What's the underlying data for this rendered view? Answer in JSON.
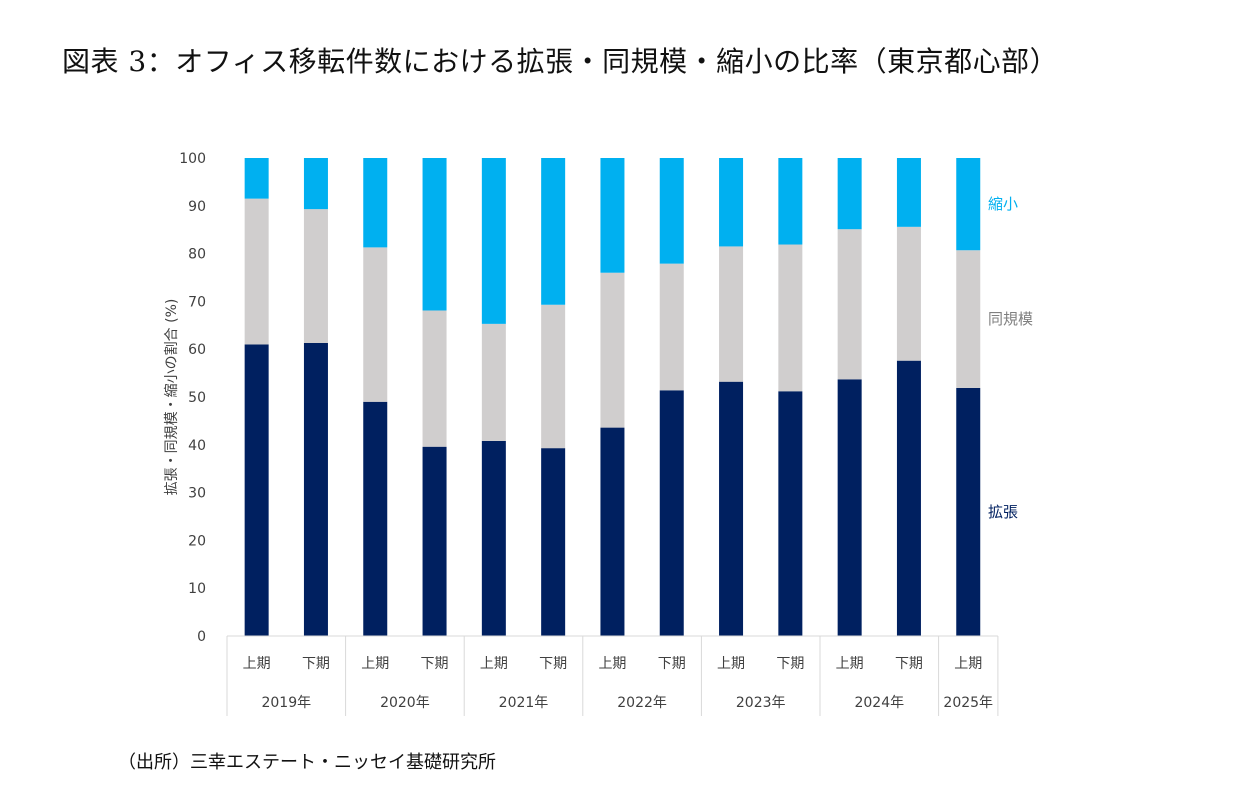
{
  "title": "図表 3：オフィス移転件数における拡張・同規模・縮小の比率（東京都心部）",
  "source": "（出所）三幸エステート・ニッセイ基礎研究所",
  "chart_data": {
    "type": "bar",
    "stacked": true,
    "title": "",
    "ylabel": "拡張・同規模・縮小の割合 (%)",
    "xlabel": "",
    "ylim": [
      0,
      100
    ],
    "yticks": [
      0,
      10,
      20,
      30,
      40,
      50,
      60,
      70,
      80,
      90,
      100
    ],
    "grid": false,
    "legend_position": "right",
    "categories": [
      "上期",
      "下期",
      "上期",
      "下期",
      "上期",
      "下期",
      "上期",
      "下期",
      "上期",
      "下期",
      "上期",
      "下期",
      "上期"
    ],
    "groups": [
      {
        "label": "2019年",
        "span": 2
      },
      {
        "label": "2020年",
        "span": 2
      },
      {
        "label": "2021年",
        "span": 2
      },
      {
        "label": "2022年",
        "span": 2
      },
      {
        "label": "2023年",
        "span": 2
      },
      {
        "label": "2024年",
        "span": 2
      },
      {
        "label": "2025年",
        "span": 1
      }
    ],
    "series": [
      {
        "name": "拡張",
        "color": "#002060",
        "values": [
          61,
          61.3,
          49,
          39.6,
          40.8,
          39.3,
          43.6,
          51.4,
          53.2,
          51.2,
          53.7,
          57.6,
          51.9
        ]
      },
      {
        "name": "同規模",
        "color": "#d0cece",
        "values": [
          30.5,
          28,
          32.3,
          28.5,
          24.5,
          30,
          32.4,
          26.5,
          28.3,
          30.7,
          31.4,
          28,
          28.8
        ]
      },
      {
        "name": "縮小",
        "color": "#00b0f0",
        "values": [
          8.5,
          10.7,
          18.7,
          31.9,
          34.7,
          30.7,
          24,
          22.1,
          18.5,
          18.1,
          14.9,
          14.4,
          19.3
        ]
      }
    ]
  }
}
